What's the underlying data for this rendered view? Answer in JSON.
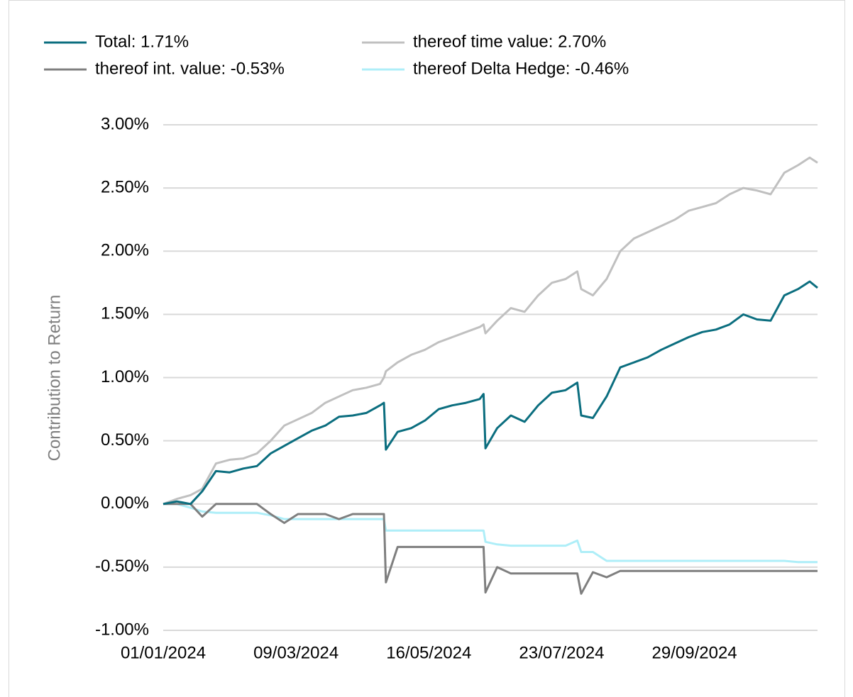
{
  "chart_data": {
    "type": "line",
    "y_label": "Contribution to Return",
    "x": [
      "2024-01-01",
      "2024-01-08",
      "2024-01-15",
      "2024-01-21",
      "2024-01-28",
      "2024-02-04",
      "2024-02-11",
      "2024-02-18",
      "2024-02-25",
      "2024-03-03",
      "2024-03-10",
      "2024-03-17",
      "2024-03-24",
      "2024-03-31",
      "2024-04-07",
      "2024-04-14",
      "2024-04-21",
      "2024-04-23",
      "2024-04-24",
      "2024-04-30",
      "2024-05-07",
      "2024-05-14",
      "2024-05-21",
      "2024-05-28",
      "2024-06-04",
      "2024-06-11",
      "2024-06-13",
      "2024-06-14",
      "2024-06-20",
      "2024-06-27",
      "2024-07-04",
      "2024-07-11",
      "2024-07-18",
      "2024-07-25",
      "2024-07-31",
      "2024-08-02",
      "2024-08-08",
      "2024-08-15",
      "2024-08-22",
      "2024-08-29",
      "2024-09-05",
      "2024-09-12",
      "2024-09-19",
      "2024-09-26",
      "2024-10-03",
      "2024-10-10",
      "2024-10-17",
      "2024-10-24",
      "2024-10-31",
      "2024-11-07",
      "2024-11-14",
      "2024-11-21",
      "2024-11-27",
      "2024-12-01"
    ],
    "series": [
      {
        "name": "Total: 1.71%",
        "color": "#0b6e7f",
        "values": [
          0,
          0.02,
          0.0,
          0.1,
          0.26,
          0.25,
          0.28,
          0.3,
          0.4,
          0.46,
          0.52,
          0.58,
          0.62,
          0.69,
          0.7,
          0.72,
          0.78,
          0.8,
          0.43,
          0.57,
          0.6,
          0.66,
          0.75,
          0.78,
          0.8,
          0.83,
          0.87,
          0.44,
          0.6,
          0.7,
          0.65,
          0.78,
          0.88,
          0.9,
          0.96,
          0.7,
          0.68,
          0.85,
          1.08,
          1.12,
          1.16,
          1.22,
          1.27,
          1.32,
          1.36,
          1.38,
          1.42,
          1.5,
          1.46,
          1.45,
          1.65,
          1.7,
          1.76,
          1.71
        ]
      },
      {
        "name": "thereof time value: 2.70%",
        "color": "#c0c0c0",
        "values": [
          0,
          0.04,
          0.07,
          0.12,
          0.32,
          0.35,
          0.36,
          0.4,
          0.5,
          0.62,
          0.67,
          0.72,
          0.8,
          0.85,
          0.9,
          0.92,
          0.95,
          1.0,
          1.05,
          1.12,
          1.18,
          1.22,
          1.28,
          1.32,
          1.36,
          1.4,
          1.42,
          1.35,
          1.45,
          1.55,
          1.52,
          1.65,
          1.75,
          1.78,
          1.84,
          1.7,
          1.65,
          1.78,
          2.0,
          2.1,
          2.15,
          2.2,
          2.25,
          2.32,
          2.35,
          2.38,
          2.45,
          2.5,
          2.48,
          2.45,
          2.62,
          2.68,
          2.74,
          2.7
        ]
      },
      {
        "name": "thereof int. value: -0.53%",
        "color": "#7f7f7f",
        "values": [
          0,
          0,
          0,
          -0.1,
          0,
          0,
          0,
          0,
          -0.08,
          -0.15,
          -0.08,
          -0.08,
          -0.08,
          -0.12,
          -0.08,
          -0.08,
          -0.08,
          -0.08,
          -0.62,
          -0.34,
          -0.34,
          -0.34,
          -0.34,
          -0.34,
          -0.34,
          -0.34,
          -0.34,
          -0.7,
          -0.5,
          -0.55,
          -0.55,
          -0.55,
          -0.55,
          -0.55,
          -0.55,
          -0.71,
          -0.54,
          -0.58,
          -0.53,
          -0.53,
          -0.53,
          -0.53,
          -0.53,
          -0.53,
          -0.53,
          -0.53,
          -0.53,
          -0.53,
          -0.53,
          -0.53,
          -0.53,
          -0.53,
          -0.53,
          -0.53
        ]
      },
      {
        "name": "thereof Delta Hedge: -0.46%",
        "color": "#aeeef8",
        "values": [
          0,
          0,
          -0.03,
          -0.06,
          -0.07,
          -0.07,
          -0.07,
          -0.07,
          -0.09,
          -0.12,
          -0.12,
          -0.12,
          -0.12,
          -0.12,
          -0.12,
          -0.12,
          -0.12,
          -0.12,
          -0.21,
          -0.21,
          -0.21,
          -0.21,
          -0.21,
          -0.21,
          -0.21,
          -0.21,
          -0.21,
          -0.3,
          -0.32,
          -0.33,
          -0.33,
          -0.33,
          -0.33,
          -0.33,
          -0.29,
          -0.38,
          -0.38,
          -0.45,
          -0.45,
          -0.45,
          -0.45,
          -0.45,
          -0.45,
          -0.45,
          -0.45,
          -0.45,
          -0.45,
          -0.45,
          -0.45,
          -0.45,
          -0.45,
          -0.46,
          -0.46,
          -0.46
        ]
      }
    ],
    "xlim": [
      "2024-01-01",
      "2024-12-01"
    ],
    "xticks": [
      {
        "value": "2024-01-01",
        "label": "01/01/2024"
      },
      {
        "value": "2024-03-09",
        "label": "09/03/2024"
      },
      {
        "value": "2024-05-16",
        "label": "16/05/2024"
      },
      {
        "value": "2024-07-23",
        "label": "23/07/2024"
      },
      {
        "value": "2024-09-29",
        "label": "29/09/2024"
      }
    ],
    "ylim": [
      -1,
      3
    ],
    "yticks": [
      {
        "value": -1,
        "label": "-1.00%"
      },
      {
        "value": -0.5,
        "label": "-0.50%"
      },
      {
        "value": 0,
        "label": "0.00%"
      },
      {
        "value": 0.5,
        "label": "0.50%"
      },
      {
        "value": 1,
        "label": "1.00%"
      },
      {
        "value": 1.5,
        "label": "1.50%"
      },
      {
        "value": 2,
        "label": "2.00%"
      },
      {
        "value": 2.5,
        "label": "2.50%"
      },
      {
        "value": 3,
        "label": "3.00%"
      }
    ],
    "grid": true,
    "legend": "top"
  }
}
